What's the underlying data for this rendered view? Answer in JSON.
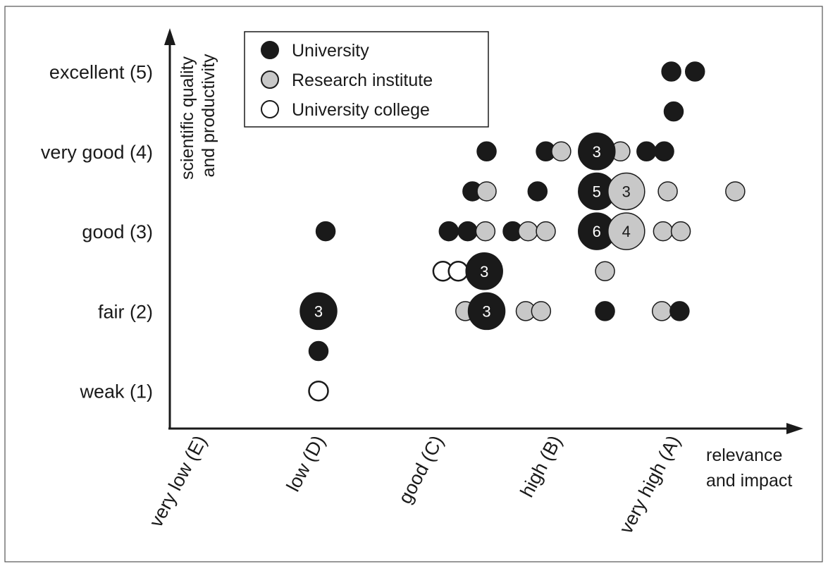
{
  "chart_data": {
    "type": "scatter",
    "xlabel": [
      "relevance",
      "and impact"
    ],
    "ylabel": [
      "scientific quality",
      "and productivity"
    ],
    "x_categories": [
      "very low  (E)",
      "low  (D)",
      "good  (C)",
      "high  (B)",
      "very high  (A)"
    ],
    "y_categories": [
      "weak  (1)",
      "fair  (2)",
      "good  (3)",
      "very good  (4)",
      "excellent  (5)"
    ],
    "legend": {
      "position": "top-left",
      "entries": [
        {
          "label": "University",
          "type": "university"
        },
        {
          "label": "Research institute",
          "type": "institute"
        },
        {
          "label": "University college",
          "type": "college"
        }
      ]
    },
    "colors": {
      "university": "#1a1a1a",
      "institute": "#c8c8c8",
      "college": "#ffffff",
      "outline": "#1a1a1a"
    },
    "points": [
      {
        "x": 4.98,
        "y": 5.0,
        "type": "university",
        "count": 1
      },
      {
        "x": 5.18,
        "y": 5.0,
        "type": "university",
        "count": 1
      },
      {
        "x": 5.0,
        "y": 4.5,
        "type": "university",
        "count": 1
      },
      {
        "x": 3.42,
        "y": 4.0,
        "type": "university",
        "count": 1
      },
      {
        "x": 3.92,
        "y": 4.0,
        "type": "university",
        "count": 1
      },
      {
        "x": 4.05,
        "y": 4.0,
        "type": "institute",
        "count": 1
      },
      {
        "x": 4.35,
        "y": 4.0,
        "type": "university",
        "count": 3,
        "label": "3"
      },
      {
        "x": 4.55,
        "y": 4.0,
        "type": "institute",
        "count": 1
      },
      {
        "x": 4.77,
        "y": 4.0,
        "type": "university",
        "count": 1
      },
      {
        "x": 4.92,
        "y": 4.0,
        "type": "university",
        "count": 1
      },
      {
        "x": 3.3,
        "y": 3.5,
        "type": "university",
        "count": 1
      },
      {
        "x": 3.42,
        "y": 3.5,
        "type": "institute",
        "count": 1
      },
      {
        "x": 3.85,
        "y": 3.5,
        "type": "university",
        "count": 1
      },
      {
        "x": 4.35,
        "y": 3.5,
        "type": "university",
        "count": 5,
        "label": "5"
      },
      {
        "x": 4.6,
        "y": 3.5,
        "type": "institute",
        "count": 3,
        "label": "3"
      },
      {
        "x": 4.95,
        "y": 3.5,
        "type": "institute",
        "count": 1
      },
      {
        "x": 5.52,
        "y": 3.5,
        "type": "institute",
        "count": 1
      },
      {
        "x": 2.06,
        "y": 3.0,
        "type": "university",
        "count": 1
      },
      {
        "x": 3.1,
        "y": 3.0,
        "type": "university",
        "count": 1
      },
      {
        "x": 3.26,
        "y": 3.0,
        "type": "university",
        "count": 1
      },
      {
        "x": 3.41,
        "y": 3.0,
        "type": "institute",
        "count": 1
      },
      {
        "x": 3.64,
        "y": 3.0,
        "type": "university",
        "count": 1
      },
      {
        "x": 3.77,
        "y": 3.0,
        "type": "institute",
        "count": 1
      },
      {
        "x": 3.92,
        "y": 3.0,
        "type": "institute",
        "count": 1
      },
      {
        "x": 4.35,
        "y": 3.0,
        "type": "university",
        "count": 6,
        "label": "6"
      },
      {
        "x": 4.6,
        "y": 3.0,
        "type": "institute",
        "count": 4,
        "label": "4"
      },
      {
        "x": 4.91,
        "y": 3.0,
        "type": "institute",
        "count": 1
      },
      {
        "x": 5.06,
        "y": 3.0,
        "type": "institute",
        "count": 1
      },
      {
        "x": 3.05,
        "y": 2.5,
        "type": "college",
        "count": 1
      },
      {
        "x": 3.18,
        "y": 2.5,
        "type": "college",
        "count": 1
      },
      {
        "x": 3.4,
        "y": 2.5,
        "type": "university",
        "count": 3,
        "label": "3"
      },
      {
        "x": 4.42,
        "y": 2.5,
        "type": "institute",
        "count": 1
      },
      {
        "x": 2.0,
        "y": 2.0,
        "type": "university",
        "count": 3,
        "label": "3"
      },
      {
        "x": 3.24,
        "y": 2.0,
        "type": "institute",
        "count": 1
      },
      {
        "x": 3.42,
        "y": 2.0,
        "type": "university",
        "count": 3,
        "label": "3"
      },
      {
        "x": 3.75,
        "y": 2.0,
        "type": "institute",
        "count": 1
      },
      {
        "x": 3.88,
        "y": 2.0,
        "type": "institute",
        "count": 1
      },
      {
        "x": 4.42,
        "y": 2.0,
        "type": "university",
        "count": 1
      },
      {
        "x": 4.9,
        "y": 2.0,
        "type": "institute",
        "count": 1
      },
      {
        "x": 5.05,
        "y": 2.0,
        "type": "university",
        "count": 1
      },
      {
        "x": 2.0,
        "y": 1.5,
        "type": "university",
        "count": 1
      },
      {
        "x": 2.0,
        "y": 1.0,
        "type": "college",
        "count": 1
      }
    ]
  }
}
